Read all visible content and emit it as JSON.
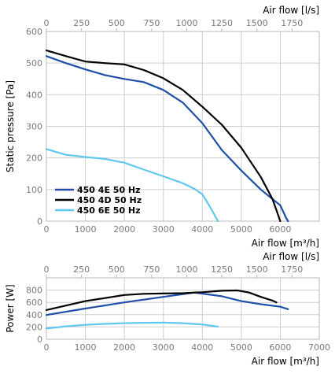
{
  "chart_data": [
    {
      "type": "line",
      "xlabel": "Air flow [m³/h]",
      "x2label": "Air flow [l/s]",
      "ylabel": "Static pressure [Pa]",
      "xlim": [
        0,
        7000
      ],
      "ylim": [
        0,
        600
      ],
      "x2lim": [
        0,
        1944.4
      ],
      "xticks": [
        "0",
        "1000",
        "2000",
        "3000",
        "4000",
        "5000",
        "6000"
      ],
      "x2ticks": [
        "0",
        "250",
        "500",
        "750",
        "1000",
        "1250",
        "1500",
        "1750"
      ],
      "yticks": [
        "0",
        "100",
        "200",
        "300",
        "400",
        "500",
        "600"
      ],
      "grid": true,
      "legend": "lower-left",
      "series": [
        {
          "name": "450 4E 50 Hz",
          "color": "#1f4fa8",
          "x": [
            0,
            500,
            1000,
            1500,
            2000,
            2500,
            3000,
            3500,
            4000,
            4500,
            5000,
            5500,
            6000,
            6150,
            6200
          ],
          "y": [
            522,
            500,
            480,
            462,
            450,
            440,
            415,
            375,
            310,
            225,
            160,
            100,
            50,
            10,
            0
          ]
        },
        {
          "name": "450 4D 50 Hz",
          "color": "#000000",
          "x": [
            0,
            500,
            1000,
            1500,
            2000,
            2500,
            3000,
            3500,
            4000,
            4500,
            5000,
            5500,
            5800,
            5900,
            6000
          ],
          "y": [
            540,
            522,
            505,
            500,
            496,
            478,
            452,
            415,
            362,
            305,
            232,
            140,
            70,
            35,
            0
          ]
        },
        {
          "name": "450 6E 50 Hz",
          "color": "#5fc8ee",
          "x": [
            0,
            500,
            1000,
            1500,
            2000,
            2500,
            3000,
            3500,
            3800,
            4000,
            4200,
            4400
          ],
          "y": [
            228,
            210,
            203,
            197,
            185,
            163,
            142,
            120,
            102,
            85,
            45,
            0
          ]
        }
      ]
    },
    {
      "type": "line",
      "xlabel": "Air flow [m³/h]",
      "x2label": "Air flow [l/s]",
      "ylabel": "Power [W]",
      "xlim": [
        0,
        7000
      ],
      "ylim": [
        0,
        1000
      ],
      "x2lim": [
        0,
        1944.4
      ],
      "xticks": [
        "0",
        "1000",
        "2000",
        "3000",
        "4000",
        "5000",
        "6000",
        "7000"
      ],
      "x2ticks": [
        "0",
        "250",
        "500",
        "750",
        "1000",
        "1250",
        "1500",
        "1750"
      ],
      "yticks": [
        "0",
        "200",
        "400",
        "600",
        "800"
      ],
      "grid": true,
      "series": [
        {
          "name": "450 4E 50 Hz",
          "color": "#1f4fa8",
          "x": [
            0,
            1000,
            2000,
            3000,
            3800,
            4500,
            5000,
            5500,
            6000,
            6200
          ],
          "y": [
            395,
            500,
            600,
            690,
            760,
            700,
            620,
            570,
            530,
            490
          ]
        },
        {
          "name": "450 4D 50 Hz",
          "color": "#000000",
          "x": [
            0,
            1000,
            2000,
            2500,
            3000,
            3500,
            4000,
            4500,
            4900,
            5200,
            5500,
            5800,
            5900
          ],
          "y": [
            475,
            620,
            720,
            740,
            745,
            750,
            765,
            790,
            795,
            760,
            690,
            630,
            600
          ]
        },
        {
          "name": "450 6E 50 Hz",
          "color": "#5fc8ee",
          "x": [
            0,
            500,
            1000,
            1500,
            2000,
            2500,
            3000,
            3500,
            4000,
            4400
          ],
          "y": [
            175,
            210,
            235,
            250,
            262,
            268,
            270,
            262,
            240,
            205
          ]
        }
      ]
    }
  ]
}
